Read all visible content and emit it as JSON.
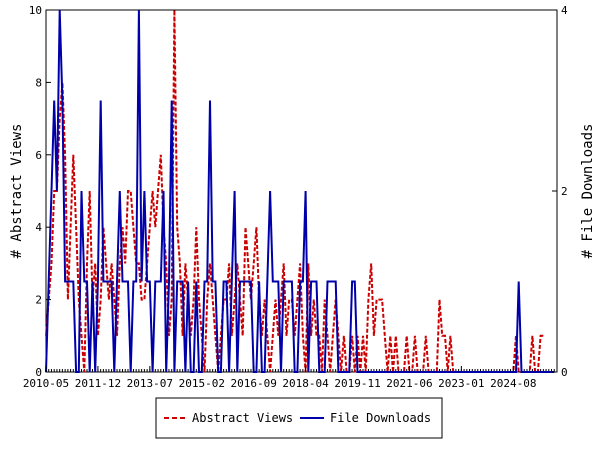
{
  "chart_data": {
    "type": "line",
    "x_tick_labels": [
      "2010-05",
      "2011-12",
      "2013-07",
      "2015-02",
      "2016-09",
      "2018-04",
      "2019-11",
      "2021-06",
      "2023-01",
      "2024-08"
    ],
    "x_range": [
      "2010-05",
      "2025-12"
    ],
    "y_left": {
      "label": "# Abstract Views",
      "range": [
        0,
        10
      ],
      "ticks": [
        0,
        2,
        4,
        6,
        8,
        10
      ]
    },
    "y_right": {
      "label": "# File Downloads",
      "range": [
        0,
        4
      ],
      "ticks": [
        0,
        2,
        4
      ]
    },
    "grid": false,
    "legend_position": "bottom",
    "series": [
      {
        "name": "Abstract Views",
        "axis": "left",
        "color": "#cc0000",
        "style": "dashed",
        "start": "2010-05",
        "values": [
          1,
          2,
          3,
          5,
          5,
          7,
          8,
          6,
          2,
          4,
          6,
          4,
          2,
          1,
          0,
          3,
          5,
          2,
          3,
          1,
          2,
          4,
          3,
          2,
          3,
          2,
          1,
          3,
          4,
          3,
          5,
          5,
          4,
          3,
          3,
          2,
          2,
          3,
          4,
          5,
          4,
          5,
          6,
          4,
          3,
          1,
          2,
          10,
          4,
          3,
          1,
          3,
          2,
          1,
          2,
          4,
          2,
          1,
          0,
          2,
          3,
          2,
          1,
          0,
          1,
          2,
          2,
          3,
          1,
          2,
          3,
          2,
          1,
          4,
          3,
          2,
          3,
          4,
          2,
          1,
          2,
          1,
          0,
          1,
          2,
          1,
          2,
          3,
          1,
          2,
          2,
          1,
          2,
          3,
          1,
          0,
          3,
          1,
          2,
          1,
          1,
          0,
          2,
          1,
          0,
          1,
          2,
          1,
          0,
          1,
          0,
          0,
          1,
          0,
          1,
          0,
          1,
          0,
          2,
          3,
          1,
          2,
          2,
          2,
          1,
          0,
          1,
          0,
          1,
          0,
          0,
          0,
          1,
          0,
          0,
          1,
          0,
          0,
          0,
          1,
          0,
          0,
          0,
          0,
          2,
          1,
          1,
          0,
          1,
          0,
          0,
          0,
          0,
          0,
          0,
          0,
          0,
          0,
          0,
          0,
          0,
          0,
          0,
          0,
          0,
          0,
          0,
          0,
          0,
          0,
          0,
          0,
          1,
          0,
          0,
          0,
          0,
          0,
          1,
          0,
          0,
          1,
          1
        ]
      },
      {
        "name": "File Downloads",
        "axis": "right",
        "color": "#0000aa",
        "style": "solid",
        "start": "2010-05",
        "values": [
          0,
          1,
          2,
          3,
          2,
          4,
          3,
          1,
          1,
          1,
          1,
          0,
          0,
          2,
          1,
          1,
          0,
          1,
          0,
          1,
          3,
          1,
          1,
          1,
          1,
          0,
          1,
          2,
          1,
          1,
          1,
          0,
          1,
          1,
          4,
          1,
          2,
          1,
          1,
          0,
          1,
          1,
          1,
          2,
          0,
          1,
          3,
          0,
          1,
          1,
          1,
          0,
          1,
          0,
          0,
          1,
          0,
          0,
          1,
          1,
          3,
          1,
          1,
          0,
          0,
          1,
          1,
          0,
          1,
          2,
          0,
          1,
          1,
          1,
          1,
          1,
          0,
          0,
          1,
          0,
          0,
          1,
          2,
          1,
          1,
          1,
          0,
          1,
          1,
          1,
          1,
          0,
          0,
          1,
          1,
          2,
          0,
          1,
          1,
          1,
          0,
          0,
          0,
          1,
          1,
          1,
          1,
          0,
          0,
          0,
          0,
          0,
          1,
          1,
          0,
          0,
          0,
          0,
          0,
          0,
          0,
          0,
          0,
          0,
          0,
          0,
          0,
          0,
          0,
          0,
          0,
          0,
          0,
          0,
          0,
          0,
          0,
          0,
          0,
          0,
          0,
          0,
          0,
          0,
          0,
          0,
          0,
          0,
          0,
          0,
          0,
          0,
          0,
          0,
          0,
          0,
          0,
          0,
          0,
          0,
          0,
          0,
          0,
          0,
          0,
          0,
          0,
          0,
          0,
          0,
          0,
          0,
          0,
          1,
          0,
          0,
          0,
          0,
          0,
          0,
          0,
          0,
          0,
          0,
          0,
          0,
          0
        ]
      }
    ]
  }
}
